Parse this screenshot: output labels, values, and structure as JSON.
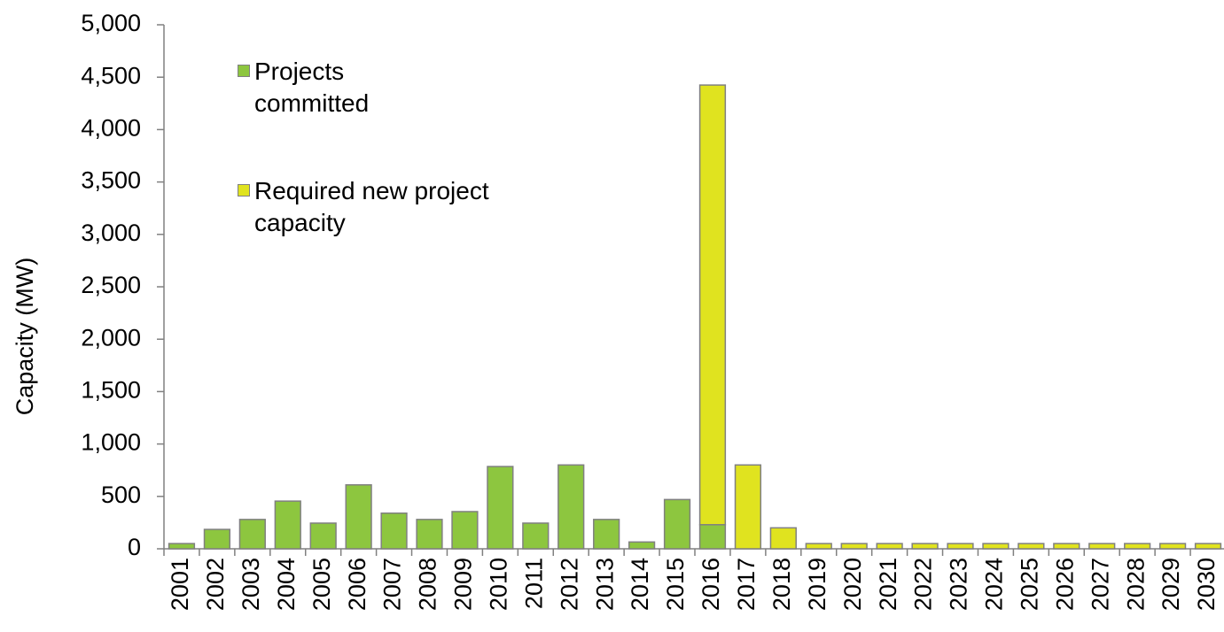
{
  "chart_data": {
    "type": "bar",
    "stacked": true,
    "y_label": "Capacity (MW)",
    "categories": [
      "2001",
      "2002",
      "2003",
      "2004",
      "2005",
      "2006",
      "2007",
      "2008",
      "2009",
      "2010",
      "2011",
      "2012",
      "2013",
      "2014",
      "2015",
      "2016",
      "2017",
      "2018",
      "2019",
      "2020",
      "2021",
      "2022",
      "2023",
      "2024",
      "2025",
      "2026",
      "2027",
      "2028",
      "2029",
      "2030"
    ],
    "series": [
      {
        "name": "Projects committed",
        "color": "#8dc63f",
        "values": [
          50,
          185,
          280,
          455,
          245,
          610,
          340,
          280,
          355,
          785,
          245,
          800,
          280,
          65,
          470,
          230,
          0,
          0,
          0,
          0,
          0,
          0,
          0,
          0,
          0,
          0,
          0,
          0,
          0,
          0
        ]
      },
      {
        "name": "Required new project capacity",
        "color": "#e0e31f",
        "values": [
          0,
          0,
          0,
          0,
          0,
          0,
          0,
          0,
          0,
          0,
          0,
          0,
          0,
          0,
          0,
          4195,
          800,
          200,
          50,
          50,
          50,
          50,
          50,
          50,
          50,
          50,
          50,
          50,
          50,
          50
        ]
      }
    ],
    "ylim": [
      0,
      5000
    ],
    "yticks": [
      0,
      500,
      {
        "value": 1000,
        "label": "1,000"
      },
      {
        "value": 1500,
        "label": "1,500"
      },
      {
        "value": 2000,
        "label": "2,000"
      },
      {
        "value": 2500,
        "label": "2,500"
      },
      {
        "value": 3000,
        "label": "3,000"
      },
      {
        "value": 3500,
        "label": "3,500"
      },
      {
        "value": 4000,
        "label": "4,000"
      },
      {
        "value": 4500,
        "label": "4,500"
      },
      {
        "value": 5000,
        "label": "5,000"
      }
    ],
    "grid": false
  }
}
